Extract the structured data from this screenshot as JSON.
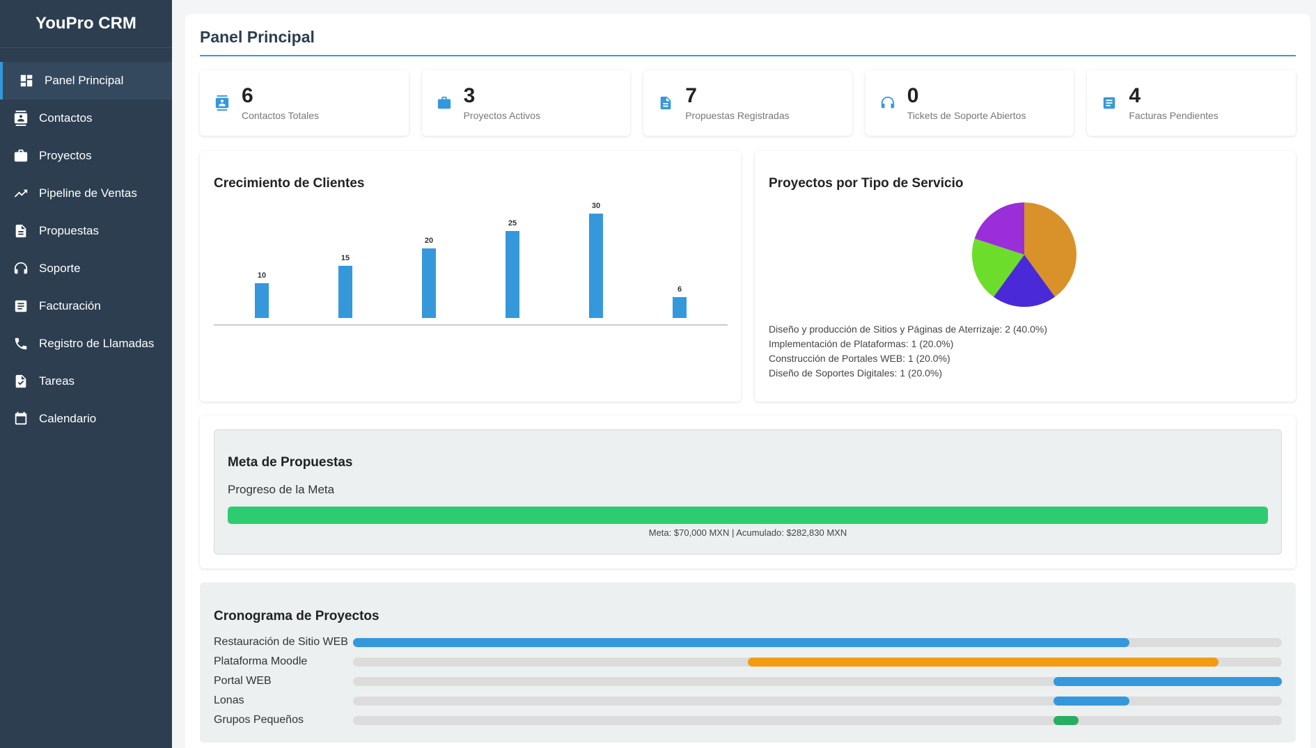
{
  "app": {
    "title": "YouPro CRM"
  },
  "sidebar": {
    "items": [
      {
        "label": "Panel Principal",
        "icon": "dashboard-icon",
        "active": true
      },
      {
        "label": "Contactos",
        "icon": "contacts-icon"
      },
      {
        "label": "Proyectos",
        "icon": "briefcase-icon"
      },
      {
        "label": "Pipeline de Ventas",
        "icon": "trending-up-icon"
      },
      {
        "label": "Propuestas",
        "icon": "document-icon"
      },
      {
        "label": "Soporte",
        "icon": "headset-icon"
      },
      {
        "label": "Facturación",
        "icon": "invoice-icon"
      },
      {
        "label": "Registro de Llamadas",
        "icon": "phone-icon"
      },
      {
        "label": "Tareas",
        "icon": "task-icon"
      },
      {
        "label": "Calendario",
        "icon": "calendar-icon"
      }
    ]
  },
  "page": {
    "title": "Panel Principal"
  },
  "stats": [
    {
      "value": "6",
      "label": "Contactos Totales",
      "icon": "contacts-icon"
    },
    {
      "value": "3",
      "label": "Proyectos Activos",
      "icon": "briefcase-icon"
    },
    {
      "value": "7",
      "label": "Propuestas Registradas",
      "icon": "document-icon"
    },
    {
      "value": "0",
      "label": "Tickets de Soporte Abiertos",
      "icon": "headset-icon"
    },
    {
      "value": "4",
      "label": "Facturas Pendientes",
      "icon": "invoice-icon"
    }
  ],
  "chart_data": [
    {
      "type": "bar",
      "title": "Crecimiento de Clientes",
      "categories": [
        "",
        "",
        "",
        "",
        "",
        ""
      ],
      "values": [
        10,
        15,
        20,
        25,
        30,
        6
      ],
      "ylim": [
        0,
        30
      ],
      "color": "#3498db"
    },
    {
      "type": "pie",
      "title": "Proyectos por Tipo de Servicio",
      "slices": [
        {
          "label": "Diseño y producción de Sitios y Páginas de Aterrizaje",
          "value": 2,
          "percent": "40.0%",
          "color": "#d89229"
        },
        {
          "label": "Implementación de Plataformas",
          "value": 1,
          "percent": "20.0%",
          "color": "#4a2ad8"
        },
        {
          "label": "Construcción de Portales WEB",
          "value": 1,
          "percent": "20.0%",
          "color": "#6ddd2c"
        },
        {
          "label": "Diseño de Soportes Digitales",
          "value": 1,
          "percent": "20.0%",
          "color": "#9a2ed8"
        }
      ],
      "legend_lines": [
        "Diseño y producción de Sitios y Páginas de Aterrizaje: 2 (40.0%)",
        "Implementación de Plataformas: 1 (20.0%)",
        "Construcción de Portales WEB: 1 (20.0%)",
        "Diseño de Soportes Digitales: 1 (20.0%)"
      ]
    }
  ],
  "goal": {
    "title": "Meta de Propuestas",
    "subtitle": "Progreso de la Meta",
    "progress": 1.0,
    "text": "Meta: $70,000 MXN | Acumulado: $282,830 MXN",
    "color": "#2ecc71"
  },
  "timeline": {
    "title": "Cronograma de Proyectos",
    "rows": [
      {
        "label": "Restauración de Sitio WEB",
        "start": 0.0,
        "end": 0.836,
        "color": "#3498db"
      },
      {
        "label": "Plataforma Moodle",
        "start": 0.425,
        "end": 0.932,
        "color": "#f39c12"
      },
      {
        "label": "Portal WEB",
        "start": 0.754,
        "end": 1.0,
        "color": "#3498db"
      },
      {
        "label": "Lonas",
        "start": 0.754,
        "end": 0.836,
        "color": "#3498db"
      },
      {
        "label": "Grupos Pequeños",
        "start": 0.754,
        "end": 0.781,
        "color": "#27ae60"
      }
    ]
  }
}
